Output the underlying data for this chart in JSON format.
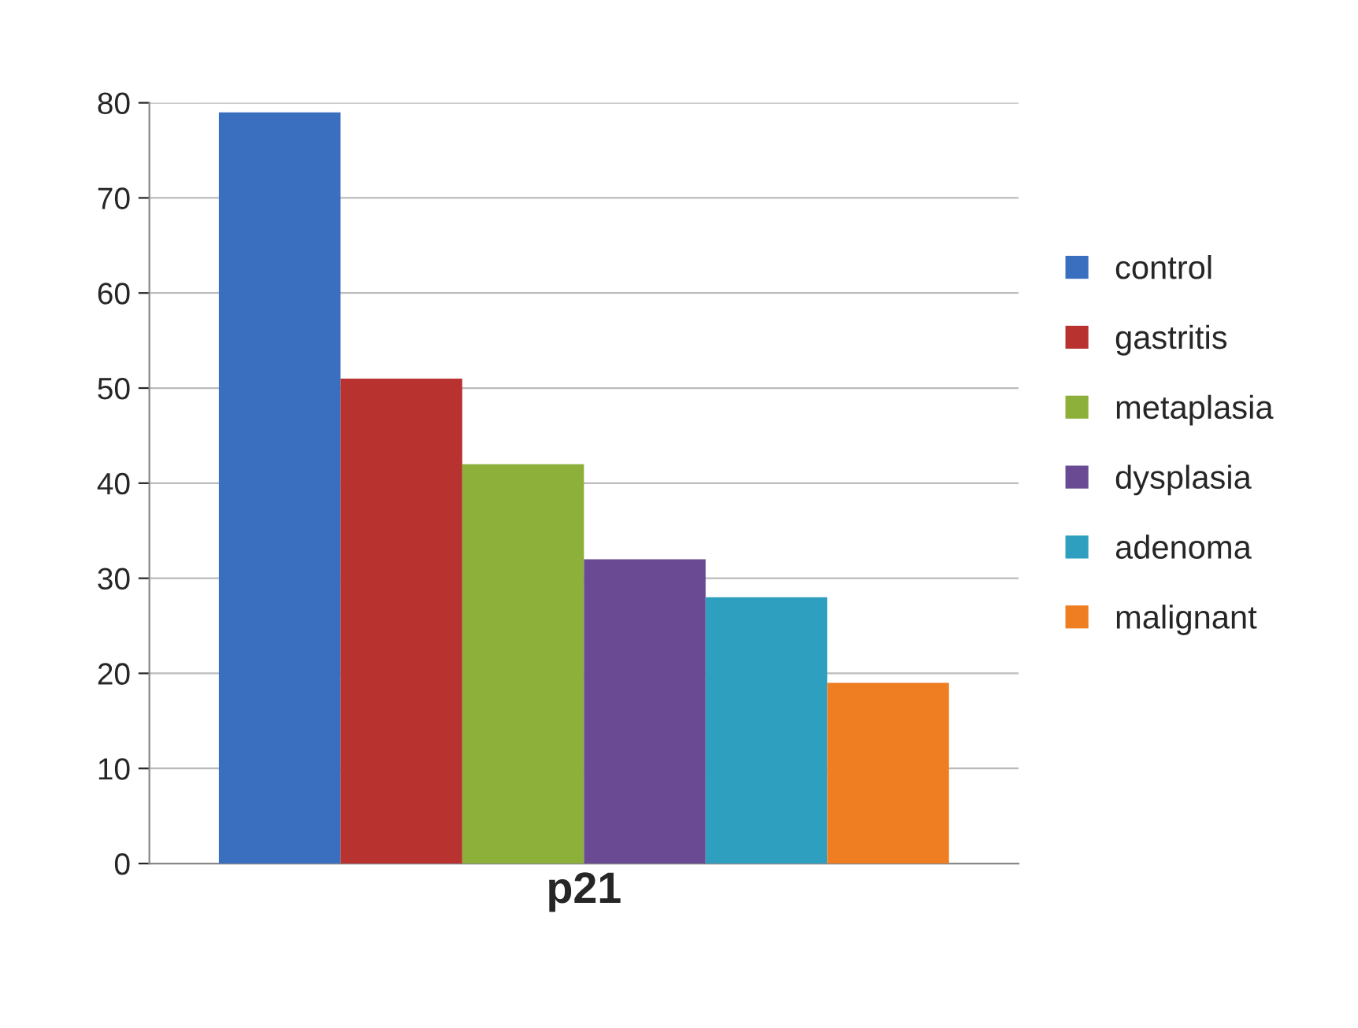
{
  "chart_data": {
    "type": "bar",
    "categories": [
      "p21"
    ],
    "series": [
      {
        "name": "control",
        "color": "#3a6fbf",
        "values": [
          79
        ]
      },
      {
        "name": "gastritis",
        "color": "#b83230",
        "values": [
          51
        ]
      },
      {
        "name": "metaplasia",
        "color": "#8db03a",
        "values": [
          42
        ]
      },
      {
        "name": "dysplasia",
        "color": "#6b4a94",
        "values": [
          32
        ]
      },
      {
        "name": "adenoma",
        "color": "#2f9fbf",
        "values": [
          28
        ]
      },
      {
        "name": "malignant",
        "color": "#ef7d22",
        "values": [
          19
        ]
      }
    ],
    "ylim": [
      0,
      80
    ],
    "yticks": [
      0,
      10,
      20,
      30,
      40,
      50,
      60,
      70,
      80
    ],
    "grid": "y",
    "legend": "right"
  }
}
